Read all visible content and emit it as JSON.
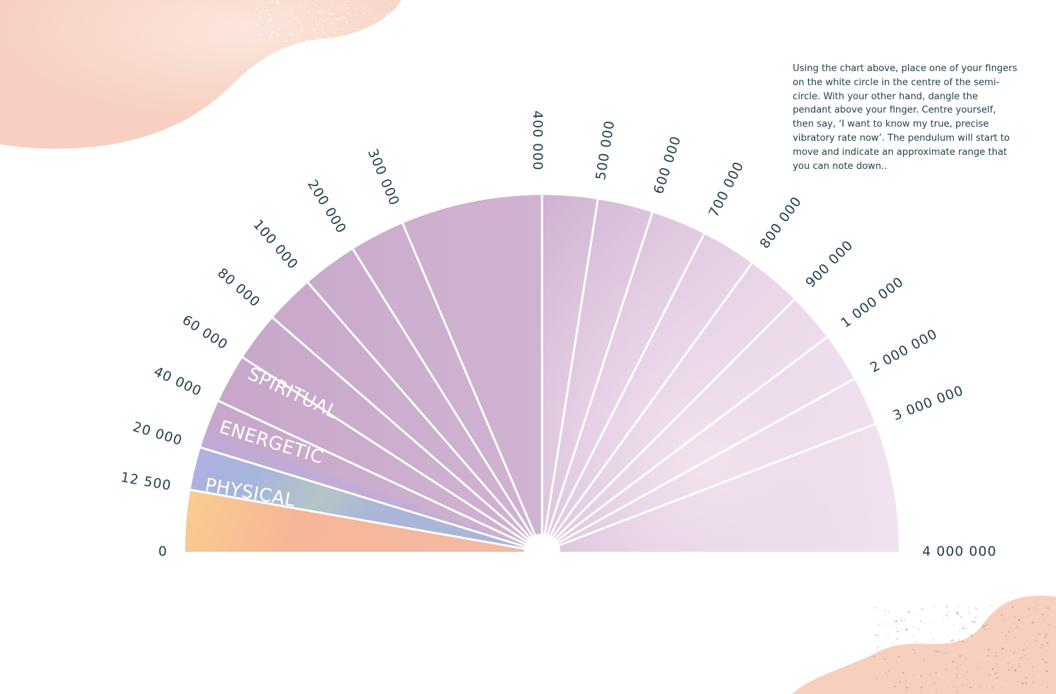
{
  "instructions": "Using the chart above, place one of your fingers on the white circle in the centre of the semi-circle. With your other hand, dangle the pendant above your finger. Centre yourself, then say, ‘I want to know my true, precise vibratory rate now’. The pendulum will start to move and indicate an approximate range that you can note down..",
  "scale_labels": [
    "0",
    "12 500",
    "20 000",
    "40 000",
    "60 000",
    "80 000",
    "100 000",
    "200 000",
    "300 000",
    "400 000",
    "500 000",
    "600 000",
    "700 000",
    "800 000",
    "900 000",
    "1 000 000",
    "2 000 000",
    "3 000 000",
    "4 000 000"
  ],
  "bands": [
    {
      "label": "PHYSICAL",
      "from": "0",
      "to": "12 500"
    },
    {
      "label": "ENERGETIC",
      "from": "12 500",
      "to": "20 000"
    },
    {
      "label": "SPIRITUAL",
      "from": "20 000",
      "to": "4 000 000"
    }
  ],
  "colors": {
    "physical": "#f4b9a0",
    "physical_yellow": "#f9cd93",
    "energetic": "#a3b3da",
    "spiritual": "#c8a9cb",
    "spiritual_light": "#efe0ee",
    "text": "#1f3f4c",
    "divider": "#ffffff",
    "corner_blob": "#f8d6c7"
  }
}
